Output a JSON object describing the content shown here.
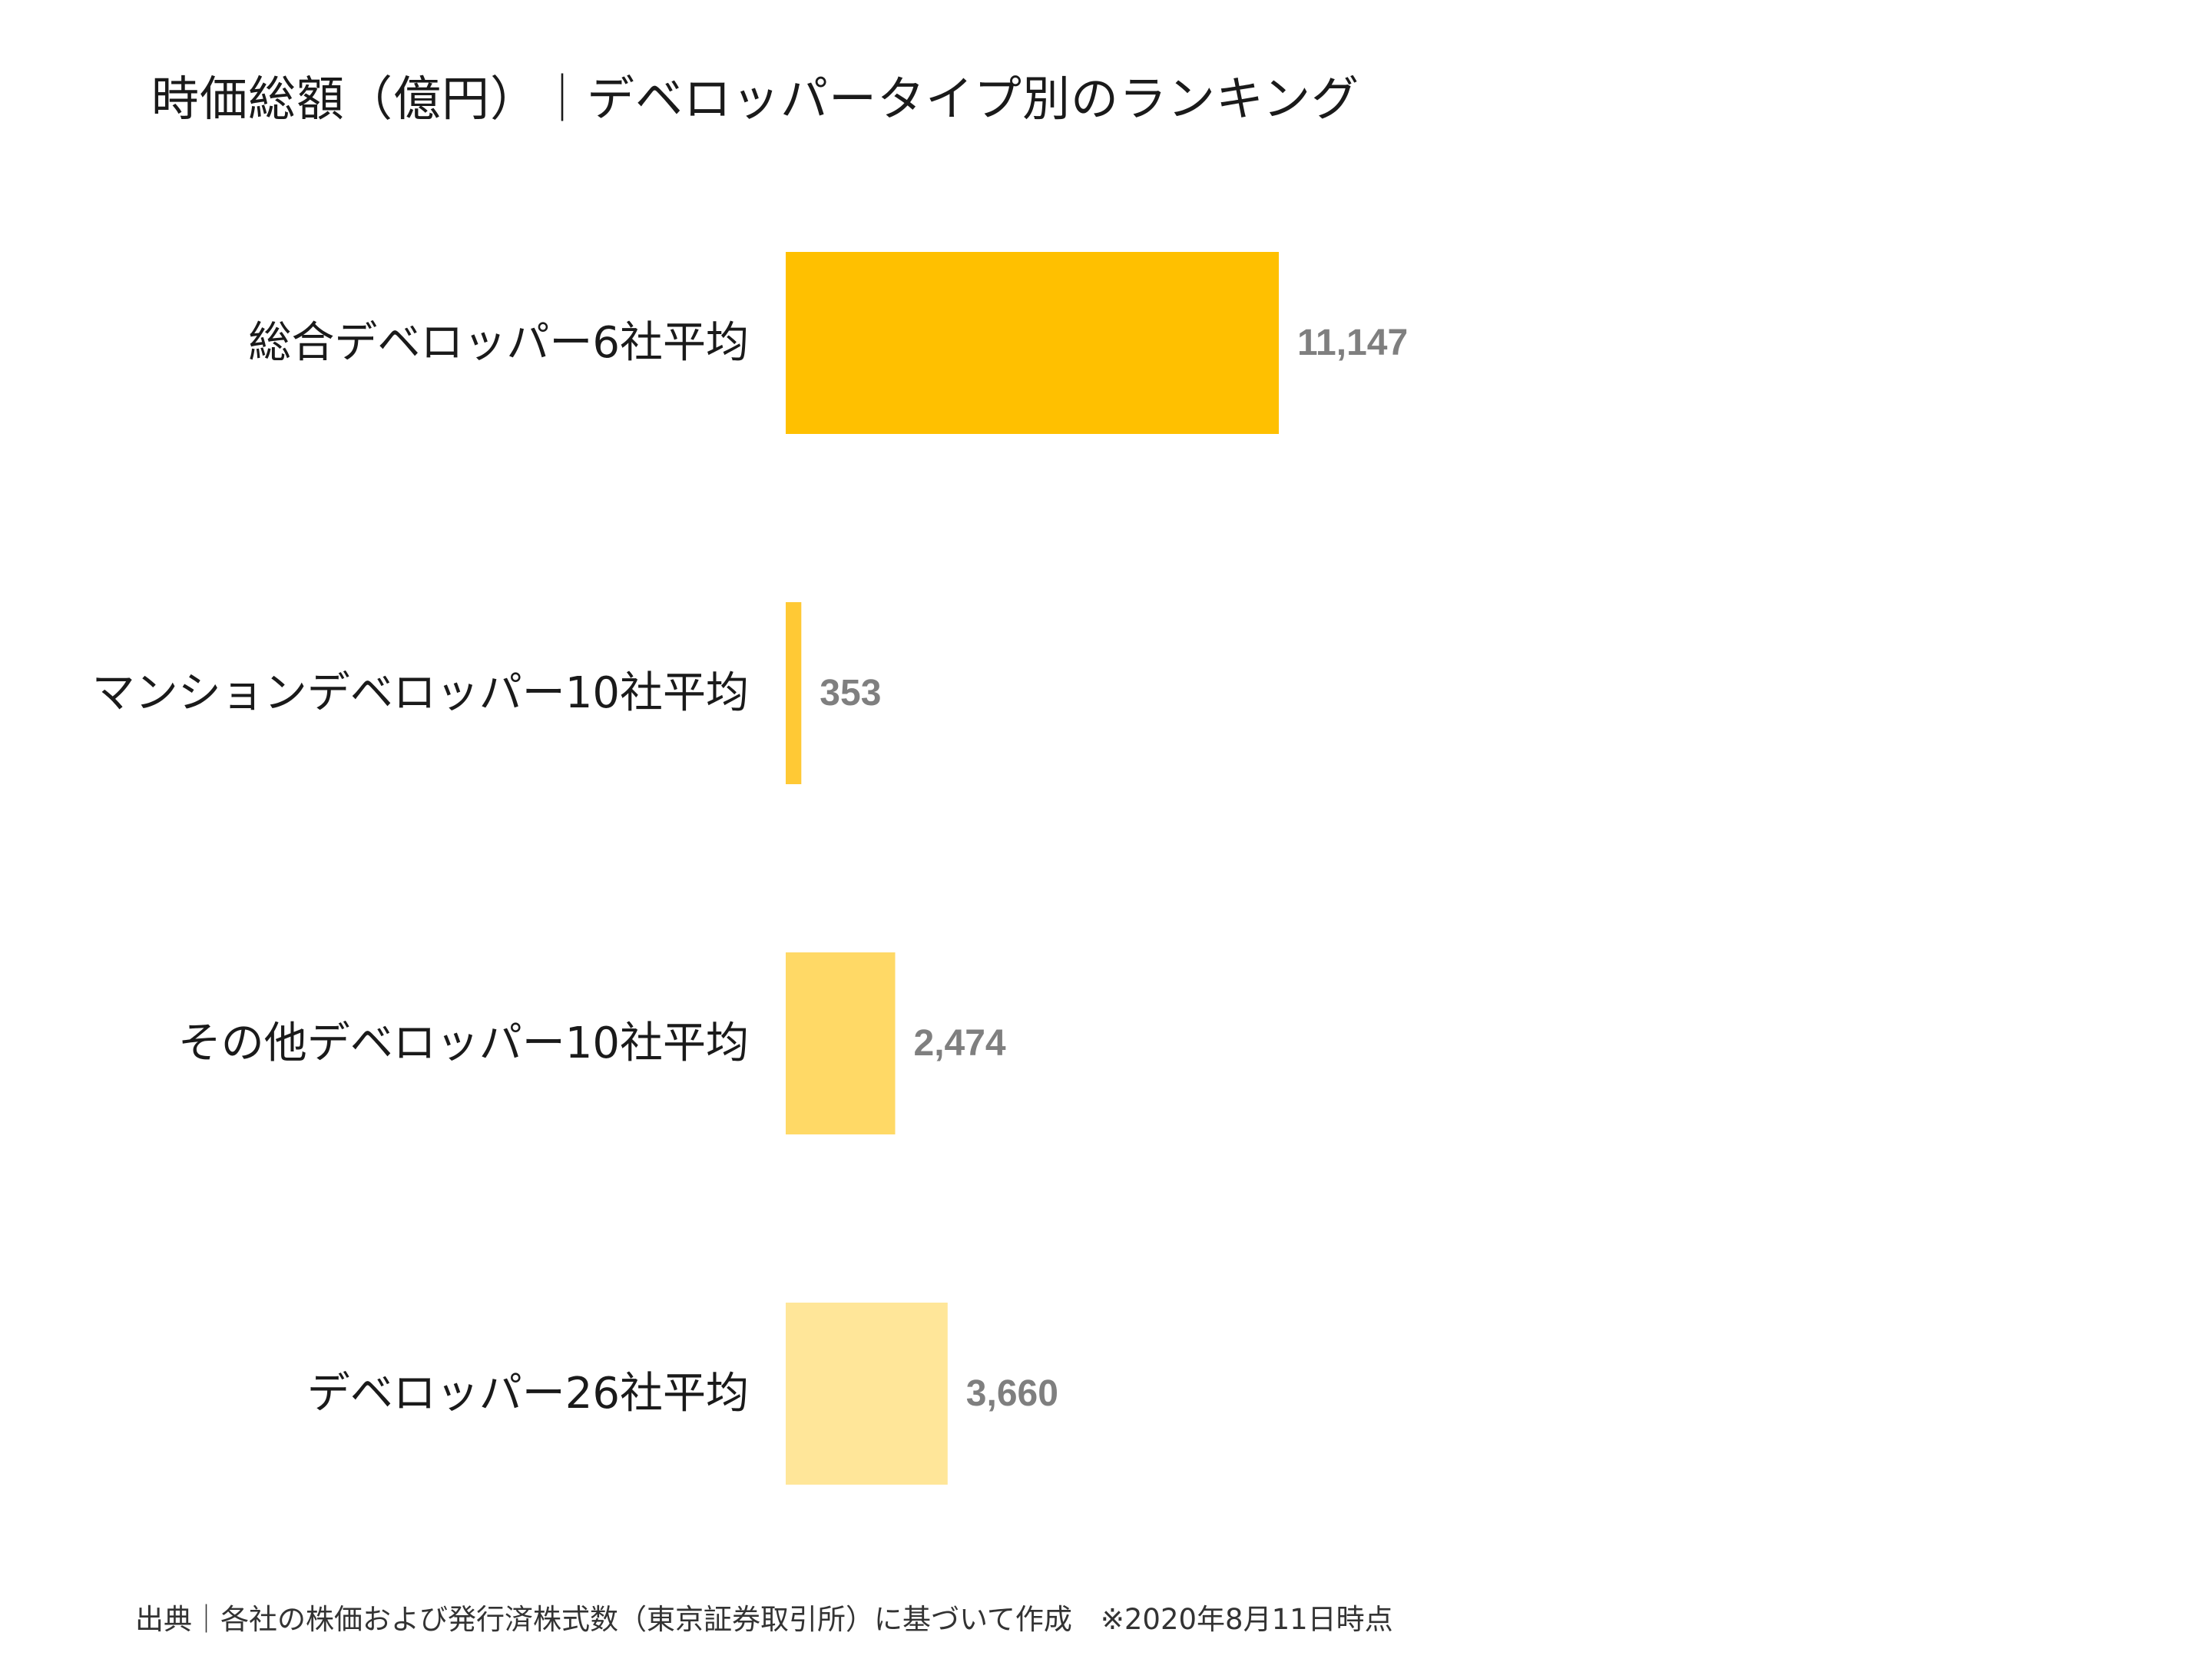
{
  "chart_data": {
    "type": "bar",
    "orientation": "horizontal",
    "title": "時価総額（億円）｜デベロッパータイプ別のランキング",
    "xlabel": "",
    "ylabel": "",
    "xlim": [
      0,
      11147
    ],
    "grid": false,
    "legend": "none",
    "categories": [
      "総合デベロッパー6社平均",
      "マンションデベロッパー10社平均",
      "その他デベロッパー10社平均",
      "デベロッパー26社平均"
    ],
    "values": [
      11147,
      353,
      2474,
      3660
    ],
    "value_labels": [
      "11,147",
      "353",
      "2,474",
      "3,660"
    ],
    "bar_colors": [
      "#FFC000",
      "#FFC935",
      "#FFD966",
      "#FFE699"
    ],
    "value_label_color": "#7F7F7F"
  },
  "footer": {
    "source": "出典｜各社の株価および発行済株式数（東京証券取引所）に基づいて作成　※2020年8月11日時点"
  }
}
